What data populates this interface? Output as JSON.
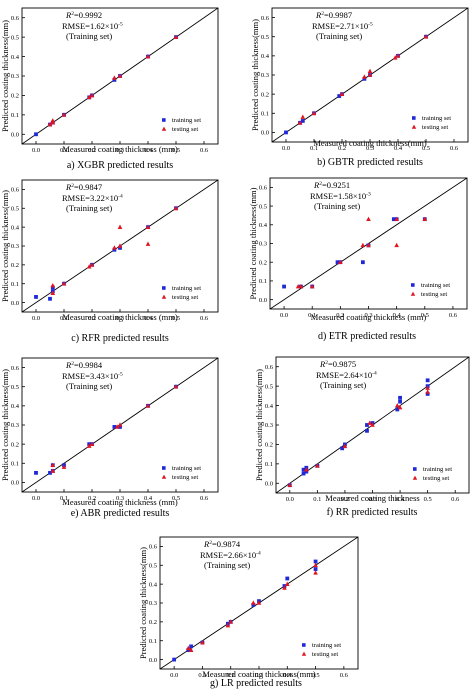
{
  "colors": {
    "training": "#1f2ad6",
    "testing": "#e0141e",
    "line": "#000000"
  },
  "panels": [
    {
      "caption": "a) XGBR predicted results",
      "r2_value": "=0.9992",
      "rmse": "RMSE=1.62×10",
      "rmse_exp": "-5",
      "set_label": "(Training set)",
      "legend": [
        "training set",
        "testing set"
      ]
    },
    {
      "caption": "b) GBTR predicted results",
      "r2_value": "=0.9987",
      "rmse": "RMSE=2.71×10",
      "rmse_exp": "-5",
      "set_label": "(Training set)",
      "legend": [
        "training set",
        "testing set"
      ]
    },
    {
      "caption": "c) RFR predicted results",
      "r2_value": "=0.9847",
      "rmse": "RMSE=3.22×10",
      "rmse_exp": "-4",
      "set_label": "(Training set)",
      "legend": [
        "training set",
        "testing set"
      ]
    },
    {
      "caption": "d) ETR predicted results",
      "r2_value": "=0.9251",
      "rmse": "RMSE=1.58×10",
      "rmse_exp": "-3",
      "set_label": "(Training set)",
      "legend": [
        "training set",
        "testing set"
      ]
    },
    {
      "caption": "e) ABR predicted results",
      "r2_value": "=0.9984",
      "rmse": "RMSE=3.43×10",
      "rmse_exp": "-5",
      "set_label": "(Training set)",
      "legend": [
        "training set",
        "testing set"
      ]
    },
    {
      "caption": "f) RR predicted results",
      "r2_value": "=0.9875",
      "rmse": "RMSE=2.64×10",
      "rmse_exp": "-4",
      "set_label": "(Training set)",
      "legend": [
        "training set",
        "testing set"
      ]
    },
    {
      "caption": "g) LR predicted results",
      "r2_value": "=0.9874",
      "rmse": "RMSE=2.66×10",
      "rmse_exp": "-4",
      "set_label": "(Training set)",
      "legend": [
        "training set",
        "testing set"
      ]
    }
  ],
  "chart_data": [
    {
      "type": "scatter",
      "xlabel": "Measured coating thickness (mm)",
      "ylabel": "Predicted coating thickness(mm)",
      "xlim": [
        -0.05,
        0.65
      ],
      "ylim": [
        -0.05,
        0.65
      ],
      "ticks": [
        "0.0",
        "0.1",
        "0.2",
        "0.3",
        "0.4",
        "0.5",
        "0.6"
      ],
      "diagonal": true,
      "series": [
        {
          "name": "training set",
          "points": [
            [
              0.0,
              0.0
            ],
            [
              0.05,
              0.05
            ],
            [
              0.06,
              0.06
            ],
            [
              0.1,
              0.1
            ],
            [
              0.19,
              0.19
            ],
            [
              0.2,
              0.2
            ],
            [
              0.28,
              0.28
            ],
            [
              0.3,
              0.3
            ],
            [
              0.4,
              0.4
            ],
            [
              0.5,
              0.5
            ]
          ]
        },
        {
          "name": "testing set",
          "points": [
            [
              0.05,
              0.05
            ],
            [
              0.06,
              0.07
            ],
            [
              0.06,
              0.06
            ],
            [
              0.1,
              0.1
            ],
            [
              0.19,
              0.19
            ],
            [
              0.2,
              0.2
            ],
            [
              0.28,
              0.29
            ],
            [
              0.3,
              0.3
            ],
            [
              0.4,
              0.4
            ],
            [
              0.5,
              0.5
            ]
          ]
        }
      ]
    },
    {
      "type": "scatter",
      "xlabel": "Measured coating thickness(mm)",
      "ylabel": "Predicted coating thickness(mm)",
      "xlim": [
        -0.05,
        0.65
      ],
      "ylim": [
        -0.05,
        0.65
      ],
      "ticks": [
        "0.0",
        "0.1",
        "0.2",
        "0.3",
        "0.4",
        "0.5",
        "0.6"
      ],
      "diagonal": true,
      "series": [
        {
          "name": "training set",
          "points": [
            [
              0.0,
              0.0
            ],
            [
              0.05,
              0.05
            ],
            [
              0.06,
              0.06
            ],
            [
              0.1,
              0.1
            ],
            [
              0.19,
              0.19
            ],
            [
              0.2,
              0.2
            ],
            [
              0.28,
              0.28
            ],
            [
              0.3,
              0.3
            ],
            [
              0.4,
              0.4
            ],
            [
              0.5,
              0.5
            ]
          ]
        },
        {
          "name": "testing set",
          "points": [
            [
              0.05,
              0.05
            ],
            [
              0.06,
              0.08
            ],
            [
              0.1,
              0.1
            ],
            [
              0.2,
              0.2
            ],
            [
              0.28,
              0.29
            ],
            [
              0.3,
              0.3
            ],
            [
              0.3,
              0.32
            ],
            [
              0.39,
              0.39
            ],
            [
              0.4,
              0.4
            ],
            [
              0.5,
              0.5
            ]
          ]
        }
      ]
    },
    {
      "type": "scatter",
      "xlabel": "Measured coating thickness (mm)",
      "ylabel": "Predicted coating thickness(mm)",
      "xlim": [
        -0.05,
        0.65
      ],
      "ylim": [
        -0.05,
        0.65
      ],
      "ticks": [
        "0.0",
        "0.1",
        "0.2",
        "0.3",
        "0.4",
        "0.5",
        "0.6"
      ],
      "diagonal": true,
      "series": [
        {
          "name": "training set",
          "points": [
            [
              0.0,
              0.03
            ],
            [
              0.05,
              0.02
            ],
            [
              0.06,
              0.06
            ],
            [
              0.06,
              0.08
            ],
            [
              0.1,
              0.1
            ],
            [
              0.2,
              0.2
            ],
            [
              0.28,
              0.28
            ],
            [
              0.3,
              0.29
            ],
            [
              0.4,
              0.4
            ],
            [
              0.5,
              0.5
            ]
          ]
        },
        {
          "name": "testing set",
          "points": [
            [
              0.06,
              0.05
            ],
            [
              0.06,
              0.09
            ],
            [
              0.1,
              0.1
            ],
            [
              0.19,
              0.19
            ],
            [
              0.2,
              0.2
            ],
            [
              0.28,
              0.29
            ],
            [
              0.3,
              0.4
            ],
            [
              0.3,
              0.3
            ],
            [
              0.4,
              0.31
            ],
            [
              0.4,
              0.4
            ],
            [
              0.5,
              0.5
            ]
          ]
        }
      ]
    },
    {
      "type": "scatter",
      "xlabel": "Measured coating thickness (mm)",
      "ylabel": "Predicted coating thickness(mm)",
      "xlim": [
        -0.05,
        0.65
      ],
      "ylim": [
        -0.05,
        0.65
      ],
      "ticks": [
        "0.0",
        "0.1",
        "0.2",
        "0.3",
        "0.4",
        "0.5",
        "0.6"
      ],
      "diagonal": true,
      "series": [
        {
          "name": "training set",
          "points": [
            [
              0.0,
              0.07
            ],
            [
              0.06,
              0.07
            ],
            [
              0.1,
              0.07
            ],
            [
              0.19,
              0.2
            ],
            [
              0.2,
              0.2
            ],
            [
              0.28,
              0.2
            ],
            [
              0.3,
              0.29
            ],
            [
              0.39,
              0.43
            ],
            [
              0.4,
              0.43
            ],
            [
              0.5,
              0.43
            ]
          ]
        },
        {
          "name": "testing set",
          "points": [
            [
              0.05,
              0.07
            ],
            [
              0.06,
              0.07
            ],
            [
              0.1,
              0.07
            ],
            [
              0.2,
              0.2
            ],
            [
              0.28,
              0.29
            ],
            [
              0.3,
              0.43
            ],
            [
              0.3,
              0.29
            ],
            [
              0.4,
              0.43
            ],
            [
              0.4,
              0.29
            ],
            [
              0.5,
              0.43
            ]
          ]
        }
      ]
    },
    {
      "type": "scatter",
      "xlabel": "Measured coating thickness (mm)",
      "ylabel": "Predicted coating thickness(mm)",
      "xlim": [
        -0.05,
        0.65
      ],
      "ylim": [
        -0.05,
        0.65
      ],
      "ticks": [
        "0.0",
        "0.1",
        "0.2",
        "0.3",
        "0.4",
        "0.5",
        "0.6"
      ],
      "diagonal": true,
      "series": [
        {
          "name": "training set",
          "points": [
            [
              0.0,
              0.05
            ],
            [
              0.05,
              0.05
            ],
            [
              0.06,
              0.06
            ],
            [
              0.06,
              0.09
            ],
            [
              0.1,
              0.09
            ],
            [
              0.19,
              0.2
            ],
            [
              0.2,
              0.2
            ],
            [
              0.28,
              0.29
            ],
            [
              0.3,
              0.29
            ],
            [
              0.4,
              0.4
            ],
            [
              0.5,
              0.5
            ]
          ]
        },
        {
          "name": "testing set",
          "points": [
            [
              0.06,
              0.06
            ],
            [
              0.06,
              0.09
            ],
            [
              0.1,
              0.08
            ],
            [
              0.19,
              0.19
            ],
            [
              0.2,
              0.2
            ],
            [
              0.29,
              0.29
            ],
            [
              0.3,
              0.3
            ],
            [
              0.4,
              0.4
            ],
            [
              0.5,
              0.5
            ]
          ]
        }
      ]
    },
    {
      "type": "scatter",
      "xlabel": "Measured coating thickness",
      "ylabel": "Predicted coating thickness(mm)",
      "xlim": [
        -0.05,
        0.65
      ],
      "ylim": [
        -0.05,
        0.65
      ],
      "ticks": [
        "0.0",
        "0.1",
        "0.2",
        "0.3",
        "0.4",
        "0.5",
        "0.6"
      ],
      "diagonal": true,
      "series": [
        {
          "name": "training set",
          "points": [
            [
              0.0,
              -0.01
            ],
            [
              0.05,
              0.05
            ],
            [
              0.05,
              0.07
            ],
            [
              0.06,
              0.06
            ],
            [
              0.06,
              0.08
            ],
            [
              0.1,
              0.09
            ],
            [
              0.19,
              0.18
            ],
            [
              0.2,
              0.2
            ],
            [
              0.28,
              0.27
            ],
            [
              0.28,
              0.3
            ],
            [
              0.3,
              0.31
            ],
            [
              0.39,
              0.38
            ],
            [
              0.4,
              0.42
            ],
            [
              0.4,
              0.44
            ],
            [
              0.5,
              0.46
            ],
            [
              0.5,
              0.5
            ],
            [
              0.5,
              0.53
            ]
          ]
        },
        {
          "name": "testing set",
          "points": [
            [
              0.0,
              -0.01
            ],
            [
              0.06,
              0.07
            ],
            [
              0.1,
              0.09
            ],
            [
              0.2,
              0.19
            ],
            [
              0.29,
              0.31
            ],
            [
              0.3,
              0.3
            ],
            [
              0.39,
              0.4
            ],
            [
              0.4,
              0.39
            ],
            [
              0.5,
              0.47
            ],
            [
              0.5,
              0.49
            ]
          ]
        }
      ]
    },
    {
      "type": "scatter",
      "xlabel": "Measured coating thickness(mm)",
      "ylabel": "Predicted coating thickness(mm)",
      "xlim": [
        -0.05,
        0.65
      ],
      "ylim": [
        -0.05,
        0.65
      ],
      "ticks": [
        "0.0",
        "0.1",
        "0.2",
        "0.3",
        "0.4",
        "0.5",
        "0.6"
      ],
      "diagonal": true,
      "series": [
        {
          "name": "training set",
          "points": [
            [
              0.0,
              0.0
            ],
            [
              0.05,
              0.05
            ],
            [
              0.06,
              0.07
            ],
            [
              0.1,
              0.09
            ],
            [
              0.19,
              0.19
            ],
            [
              0.2,
              0.2
            ],
            [
              0.28,
              0.29
            ],
            [
              0.3,
              0.31
            ],
            [
              0.39,
              0.39
            ],
            [
              0.4,
              0.43
            ],
            [
              0.5,
              0.48
            ],
            [
              0.5,
              0.52
            ]
          ]
        },
        {
          "name": "testing set",
          "points": [
            [
              0.05,
              0.06
            ],
            [
              0.06,
              0.05
            ],
            [
              0.1,
              0.09
            ],
            [
              0.19,
              0.18
            ],
            [
              0.2,
              0.2
            ],
            [
              0.28,
              0.3
            ],
            [
              0.3,
              0.3
            ],
            [
              0.39,
              0.38
            ],
            [
              0.4,
              0.4
            ],
            [
              0.5,
              0.46
            ],
            [
              0.5,
              0.5
            ]
          ]
        }
      ]
    }
  ]
}
